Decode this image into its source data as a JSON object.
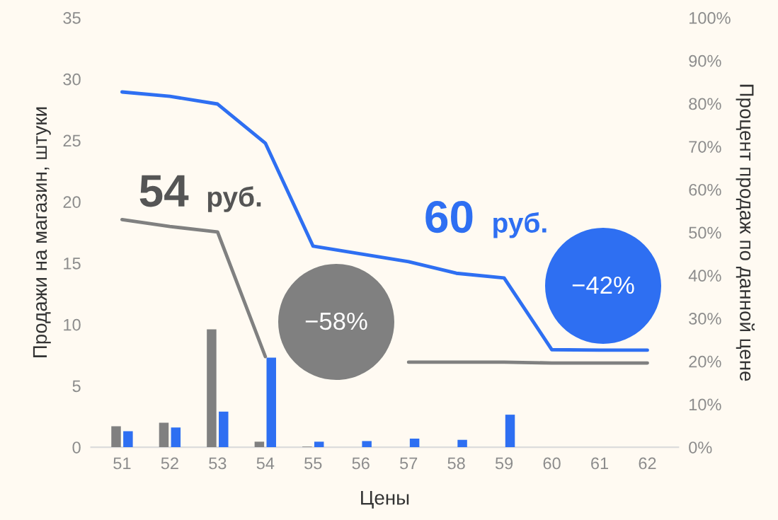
{
  "chart_data": {
    "type": "bar",
    "xlabel": "Цены",
    "ylabel": "Продажи на магазин, штуки",
    "y2label": "Процент продаж по данной цене",
    "categories": [
      "51",
      "52",
      "53",
      "54",
      "55",
      "56",
      "57",
      "58",
      "59",
      "60",
      "61",
      "62"
    ],
    "series": [
      {
        "color": "#808080",
        "values": [
          1.7,
          2.0,
          9.6,
          0.45,
          0.05,
          0,
          0,
          0,
          0,
          0,
          0,
          0
        ]
      },
      {
        "color": "#2e6ff2",
        "values": [
          1.3,
          1.6,
          2.9,
          7.3,
          0.45,
          0.5,
          0.7,
          0.6,
          2.65,
          0,
          0,
          0
        ]
      },
      {
        "type": "line",
        "axis": "y2",
        "color": "#808080",
        "values": [
          53,
          51.4,
          50.1,
          21.1,
          null,
          null,
          19.8,
          19.8,
          19.8,
          19.6,
          19.6,
          19.6
        ]
      },
      {
        "type": "line",
        "axis": "y2",
        "color": "#2e6ff2",
        "values": [
          82.7,
          81.7,
          79.9,
          70.8,
          46.8,
          45,
          43.2,
          40.5,
          39.4,
          22.7,
          22.6,
          22.6
        ]
      }
    ],
    "ylim": [
      0,
      35
    ],
    "yticks": [
      0,
      5,
      10,
      15,
      20,
      25,
      30,
      35
    ],
    "y2lim": [
      0,
      100
    ],
    "y2ticks": [
      {
        "value": 0,
        "label": "0%"
      },
      {
        "value": 10,
        "label": "10%"
      },
      {
        "value": 20,
        "label": "20%"
      },
      {
        "value": 30,
        "label": "30%"
      },
      {
        "value": 40,
        "label": "40%"
      },
      {
        "value": 50,
        "label": "50%"
      },
      {
        "value": 60,
        "label": "60%"
      },
      {
        "value": 70,
        "label": "70%"
      },
      {
        "value": 80,
        "label": "80%"
      },
      {
        "value": 90,
        "label": "90%"
      },
      {
        "value": 100,
        "label": "100%"
      }
    ],
    "annotations": [
      "54 руб.",
      "60 руб.",
      "−58%",
      "−42%"
    ],
    "grid": false,
    "legend": false,
    "marker": "none",
    "line_style": "solid"
  }
}
